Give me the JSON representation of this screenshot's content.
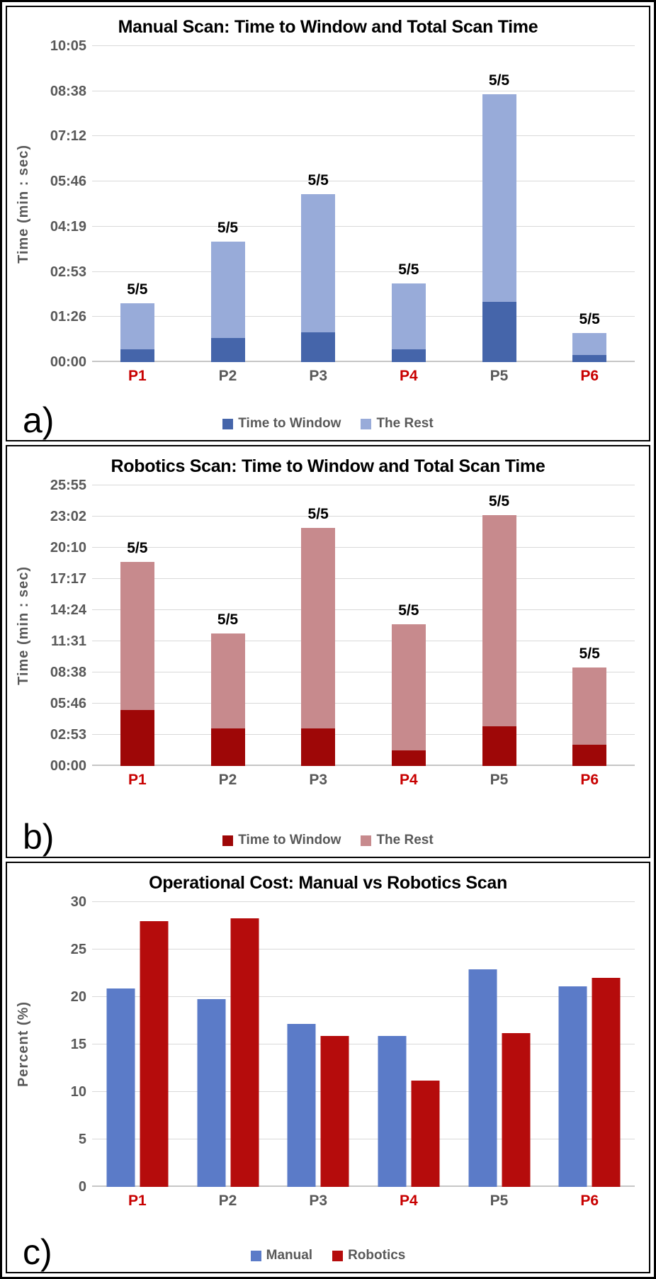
{
  "figure": {
    "description": "Three stacked chart panels comparing manual and robotics scans",
    "text_colors": {
      "axis_gray": "#595959",
      "category_red": "#c80000",
      "annotation_black": "#000000"
    }
  },
  "chart_data": [
    {
      "panel_label": "a)",
      "type": "bar",
      "variant": "stacked",
      "title": "Manual Scan: Time to Window and Total Scan Time",
      "ylabel": "Time (min : sec)",
      "unit": "seconds (axis shown as mm:ss)",
      "ymax": 604.8,
      "grid": true,
      "legend_position": "bottom",
      "yticks": [
        {
          "label": "00:00",
          "value": 0
        },
        {
          "label": "01:26",
          "value": 86.4
        },
        {
          "label": "02:53",
          "value": 172.8
        },
        {
          "label": "04:19",
          "value": 259.2
        },
        {
          "label": "05:46",
          "value": 345.6
        },
        {
          "label": "07:12",
          "value": 432
        },
        {
          "label": "08:38",
          "value": 518.4
        },
        {
          "label": "10:05",
          "value": 604.8
        }
      ],
      "categories": [
        "P1",
        "P2",
        "P3",
        "P4",
        "P5",
        "P6"
      ],
      "category_colors": [
        "#c80000",
        "#595959",
        "#595959",
        "#c80000",
        "#595959",
        "#c80000"
      ],
      "bar_annotations": [
        "5/5",
        "5/5",
        "5/5",
        "5/5",
        "5/5",
        "5/5"
      ],
      "series": [
        {
          "name": "Time to Window",
          "color": "#4565aa",
          "values": [
            24,
            46,
            57,
            25,
            115,
            14
          ]
        },
        {
          "name": "The Rest",
          "color": "#98abd9",
          "values": [
            88,
            184,
            264,
            126,
            397,
            41
          ]
        }
      ],
      "total_seconds": [
        112,
        230,
        321,
        151,
        512,
        55
      ]
    },
    {
      "panel_label": "b)",
      "type": "bar",
      "variant": "stacked",
      "title": "Robotics Scan: Time to Window and Total Scan Time",
      "ylabel": "Time (min : sec)",
      "unit": "seconds (axis shown as mm:ss)",
      "ymax": 1555.2,
      "grid": true,
      "legend_position": "bottom",
      "yticks": [
        {
          "label": "00:00",
          "value": 0
        },
        {
          "label": "02:53",
          "value": 172.8
        },
        {
          "label": "05:46",
          "value": 345.6
        },
        {
          "label": "08:38",
          "value": 518.4
        },
        {
          "label": "11:31",
          "value": 691.2
        },
        {
          "label": "14:24",
          "value": 864
        },
        {
          "label": "17:17",
          "value": 1036.8
        },
        {
          "label": "20:10",
          "value": 1209.6
        },
        {
          "label": "23:02",
          "value": 1382.4
        },
        {
          "label": "25:55",
          "value": 1555.2
        }
      ],
      "categories": [
        "P1",
        "P2",
        "P3",
        "P4",
        "P5",
        "P6"
      ],
      "category_colors": [
        "#c80000",
        "#595959",
        "#595959",
        "#c80000",
        "#595959",
        "#c80000"
      ],
      "bar_annotations": [
        "5/5",
        "5/5",
        "5/5",
        "5/5",
        "5/5",
        "5/5"
      ],
      "series": [
        {
          "name": "Time to Window",
          "color": "#9e0707",
          "values": [
            312,
            208,
            208,
            86,
            220,
            117
          ]
        },
        {
          "name": "The Rest",
          "color": "#c78a8d",
          "values": [
            821,
            527,
            1110,
            700,
            1170,
            427
          ]
        }
      ],
      "total_seconds": [
        1133,
        735,
        1318,
        786,
        1390,
        544
      ]
    },
    {
      "panel_label": "c)",
      "type": "bar",
      "variant": "grouped",
      "title": "Operational Cost: Manual vs Robotics Scan",
      "ylabel": "Percent (%)",
      "unit": "percent",
      "ymax": 30,
      "grid": true,
      "legend_position": "bottom",
      "yticks": [
        {
          "label": "0",
          "value": 0
        },
        {
          "label": "5",
          "value": 5
        },
        {
          "label": "10",
          "value": 10
        },
        {
          "label": "15",
          "value": 15
        },
        {
          "label": "20",
          "value": 20
        },
        {
          "label": "25",
          "value": 25
        },
        {
          "label": "30",
          "value": 30
        }
      ],
      "categories": [
        "P1",
        "P2",
        "P3",
        "P4",
        "P5",
        "P6"
      ],
      "category_colors": [
        "#c80000",
        "#595959",
        "#595959",
        "#c80000",
        "#595959",
        "#c80000"
      ],
      "bar_annotations": [],
      "series": [
        {
          "name": "Manual",
          "color": "#5b7bc8",
          "values": [
            20.9,
            19.8,
            17.2,
            15.9,
            22.9,
            21.1
          ]
        },
        {
          "name": "Robotics",
          "color": "#b50c0c",
          "values": [
            28.0,
            28.3,
            15.9,
            11.2,
            16.2,
            22.0
          ]
        }
      ]
    }
  ]
}
